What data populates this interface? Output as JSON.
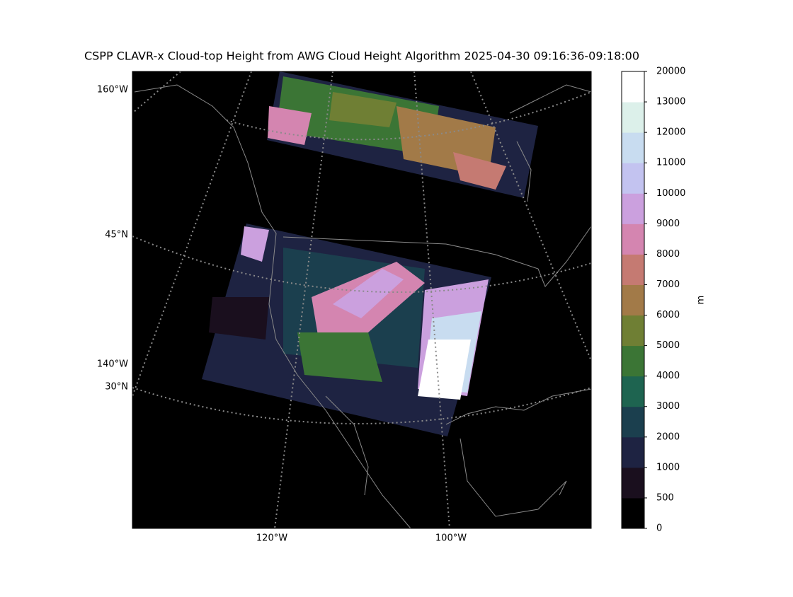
{
  "map": {
    "title": "CSPP CLAVR-x Cloud-top Height from AWG Cloud Height Algorithm 2025-04-30 09:16:36-09:18:00",
    "left_labels": [
      "160°W",
      "45°N",
      "140°W",
      "30°N"
    ],
    "bottom_labels": [
      "120°W",
      "100°W"
    ],
    "colorbar": {
      "label": "m",
      "ticks": [
        0,
        500,
        1000,
        2000,
        3000,
        4000,
        5000,
        6000,
        7000,
        8000,
        9000,
        10000,
        11000,
        12000,
        13000,
        20000
      ],
      "colors": [
        "#000000",
        "#1a0f1e",
        "#1e2342",
        "#1b3f4e",
        "#1e6450",
        "#3b7535",
        "#6f7f34",
        "#a27a48",
        "#c57a72",
        "#d485b0",
        "#cba0de",
        "#c3c3f0",
        "#c8dcf0",
        "#dcf0ea",
        "#ffffff"
      ]
    }
  }
}
